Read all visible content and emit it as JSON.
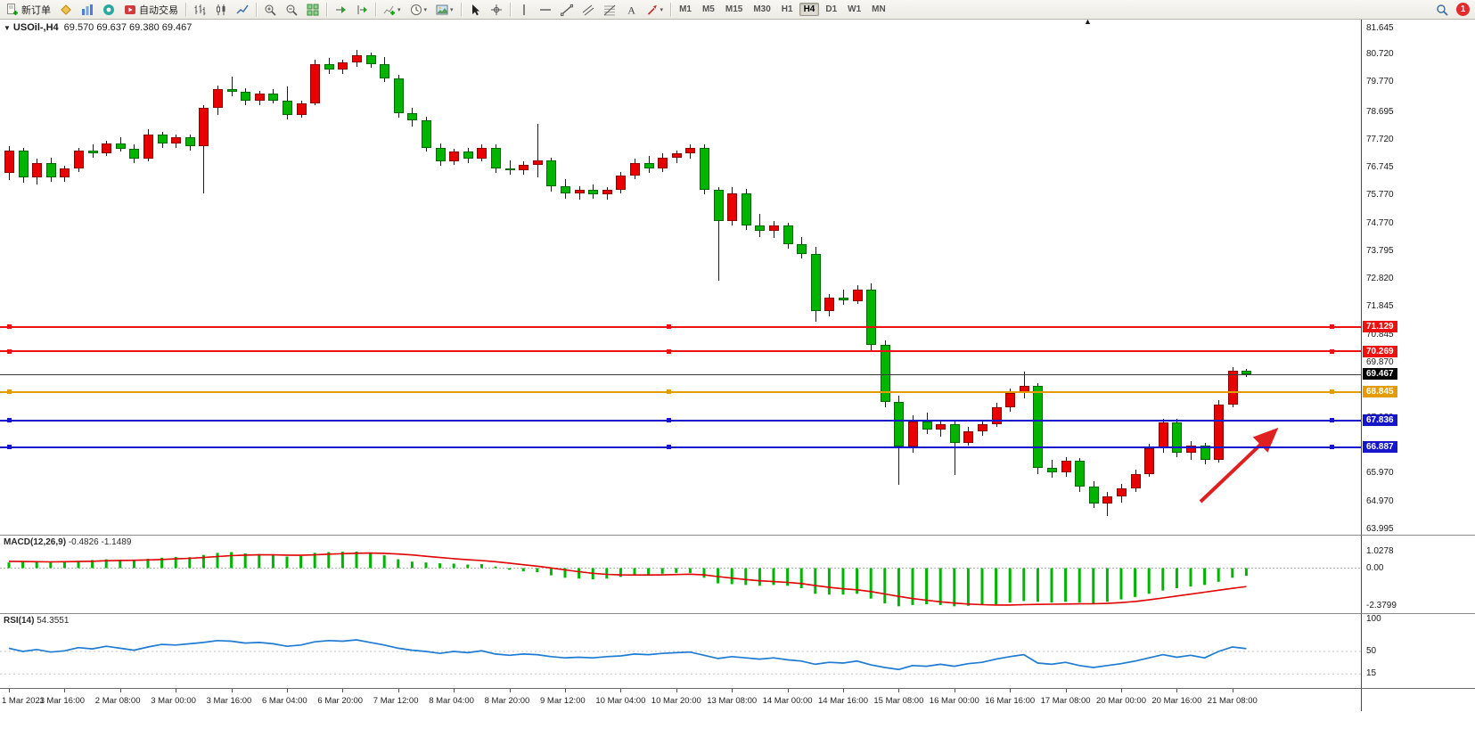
{
  "toolbar": {
    "active_timeframe": "H4",
    "notification_count": "1",
    "items": [
      {
        "type": "button",
        "name": "new-order-button",
        "icon": "new-order-icon",
        "label": "新订单"
      },
      {
        "type": "icon",
        "name": "metaeditor-button",
        "icon": "metaeditor-icon"
      },
      {
        "type": "icon",
        "name": "market-watch-button",
        "icon": "market-watch-icon"
      },
      {
        "type": "icon",
        "name": "mql-community-button",
        "icon": "mql-icon"
      },
      {
        "type": "button",
        "name": "autotrading-button",
        "icon": "autotrading-icon",
        "label": "自动交易"
      },
      {
        "type": "sep"
      },
      {
        "type": "icon",
        "name": "bar-chart-button",
        "icon": "bar-chart-icon"
      },
      {
        "type": "icon",
        "name": "candlestick-chart-button",
        "icon": "candlestick-icon"
      },
      {
        "type": "icon",
        "name": "line-chart-button",
        "icon": "line-chart-icon"
      },
      {
        "type": "sep"
      },
      {
        "type": "icon",
        "name": "zoom-in-button",
        "icon": "zoom-in-icon"
      },
      {
        "type": "icon",
        "name": "zoom-out-button",
        "icon": "zoom-out-icon"
      },
      {
        "type": "icon",
        "name": "tile-windows-button",
        "icon": "tile-windows-icon"
      },
      {
        "type": "sep"
      },
      {
        "type": "icon",
        "name": "auto-scroll-button",
        "icon": "auto-scroll-icon"
      },
      {
        "type": "icon",
        "name": "chart-shift-button",
        "icon": "chart-shift-icon"
      },
      {
        "type": "sep"
      },
      {
        "type": "icon",
        "name": "indicators-button",
        "icon": "indicators-icon",
        "caret": true
      },
      {
        "type": "icon",
        "name": "periods-button",
        "icon": "periods-icon",
        "caret": true
      },
      {
        "type": "icon",
        "name": "templates-button",
        "icon": "template-icon",
        "caret": true
      },
      {
        "type": "sep"
      },
      {
        "type": "icon",
        "name": "cursor-button",
        "icon": "cursor-icon"
      },
      {
        "type": "icon",
        "name": "crosshair-button",
        "icon": "crosshair-icon"
      },
      {
        "type": "sep"
      },
      {
        "type": "icon",
        "name": "vertical-line-button",
        "icon": "vline-icon"
      },
      {
        "type": "icon",
        "name": "horizontal-line-button",
        "icon": "hline-icon"
      },
      {
        "type": "icon",
        "name": "trendline-button",
        "icon": "trendline-icon"
      },
      {
        "type": "icon",
        "name": "channel-button",
        "icon": "channel-icon"
      },
      {
        "type": "icon",
        "name": "fibonacci-button",
        "icon": "fibo-icon"
      },
      {
        "type": "icon",
        "name": "text-button",
        "icon": "text-icon"
      },
      {
        "type": "icon",
        "name": "arrows-button",
        "icon": "arrows-icon",
        "caret": true
      },
      {
        "type": "sep"
      },
      {
        "type": "tf",
        "name": "timeframe-m1-button",
        "label": "M1"
      },
      {
        "type": "tf",
        "name": "timeframe-m5-button",
        "label": "M5"
      },
      {
        "type": "tf",
        "name": "timeframe-m15-button",
        "label": "M15"
      },
      {
        "type": "tf",
        "name": "timeframe-m30-button",
        "label": "M30"
      },
      {
        "type": "tf",
        "name": "timeframe-h1-button",
        "label": "H1"
      },
      {
        "type": "tf",
        "name": "timeframe-h4-button",
        "label": "H4"
      },
      {
        "type": "tf",
        "name": "timeframe-d1-button",
        "label": "D1"
      },
      {
        "type": "tf",
        "name": "timeframe-w1-button",
        "label": "W1"
      },
      {
        "type": "tf",
        "name": "timeframe-mn-button",
        "label": "MN"
      },
      {
        "type": "spacer"
      },
      {
        "type": "icon",
        "name": "search-button",
        "icon": "search-icon"
      },
      {
        "type": "badge",
        "name": "notification-badge",
        "label": "1"
      }
    ]
  },
  "chart": {
    "symbol_period": "USOil-,H4",
    "ohlc": "69.570 69.637 69.380 69.467",
    "up_color": "#e80000",
    "down_color": "#00b400",
    "price_axis": [
      "81.645",
      "80.720",
      "79.770",
      "78.695",
      "77.720",
      "76.745",
      "75.770",
      "74.770",
      "73.795",
      "72.820",
      "71.845",
      "70.845",
      "69.870",
      "68.895",
      "67.920",
      "66.945",
      "65.970",
      "64.970",
      "63.995"
    ],
    "hlines": [
      {
        "label": "71.129",
        "price": 71.129,
        "color": "#ee1111"
      },
      {
        "label": "70.269",
        "price": 70.269,
        "color": "#ee1111"
      },
      {
        "label": "68.845",
        "price": 68.845,
        "color": "#e39b00"
      },
      {
        "label": "67.836",
        "price": 67.836,
        "color": "#1515cc"
      },
      {
        "label": "66.887",
        "price": 66.887,
        "color": "#1515cc"
      }
    ],
    "current_price": {
      "label": "69.467",
      "price": 69.467,
      "color": "#000000"
    },
    "time_axis": [
      "1 Mar 2023",
      "1 Mar 16:00",
      "2 Mar 08:00",
      "3 Mar 00:00",
      "3 Mar 16:00",
      "6 Mar 04:00",
      "6 Mar 20:00",
      "7 Mar 12:00",
      "8 Mar 04:00",
      "8 Mar 20:00",
      "9 Mar 12:00",
      "10 Mar 04:00",
      "10 Mar 20:00",
      "13 Mar 08:00",
      "14 Mar 00:00",
      "14 Mar 16:00",
      "15 Mar 08:00",
      "16 Mar 00:00",
      "16 Mar 16:00",
      "17 Mar 08:00",
      "20 Mar 00:00",
      "20 Mar 16:00",
      "21 Mar 08:00"
    ]
  },
  "chart_data": {
    "type": "candlestick",
    "symbol": "USOil-",
    "timeframe": "H4",
    "ylim": [
      63.995,
      81.645
    ],
    "candles": [
      [
        76.55,
        77.5,
        76.3,
        77.35
      ],
      [
        77.35,
        77.45,
        76.2,
        76.4
      ],
      [
        76.4,
        77.05,
        76.15,
        76.9
      ],
      [
        76.9,
        77.1,
        76.25,
        76.4
      ],
      [
        76.4,
        76.8,
        76.25,
        76.7
      ],
      [
        76.7,
        77.45,
        76.6,
        77.35
      ],
      [
        77.35,
        77.55,
        77.1,
        77.25
      ],
      [
        77.25,
        77.7,
        77.15,
        77.6
      ],
      [
        77.6,
        77.8,
        77.3,
        77.4
      ],
      [
        77.4,
        77.55,
        76.9,
        77.05
      ],
      [
        77.05,
        78.1,
        76.95,
        77.9
      ],
      [
        77.9,
        78.0,
        77.45,
        77.6
      ],
      [
        77.6,
        77.9,
        77.45,
        77.8
      ],
      [
        77.8,
        77.9,
        77.35,
        77.5
      ],
      [
        77.5,
        78.95,
        75.85,
        78.85
      ],
      [
        78.85,
        79.65,
        78.6,
        79.5
      ],
      [
        79.5,
        79.95,
        79.25,
        79.4
      ],
      [
        79.4,
        79.55,
        78.95,
        79.1
      ],
      [
        79.1,
        79.45,
        78.95,
        79.35
      ],
      [
        79.35,
        79.5,
        79.0,
        79.1
      ],
      [
        79.1,
        79.6,
        78.45,
        78.6
      ],
      [
        78.6,
        79.1,
        78.5,
        79.0
      ],
      [
        79.0,
        80.55,
        78.95,
        80.4
      ],
      [
        80.4,
        80.6,
        80.05,
        80.2
      ],
      [
        80.2,
        80.55,
        80.05,
        80.45
      ],
      [
        80.45,
        80.9,
        80.3,
        80.7
      ],
      [
        80.7,
        80.8,
        80.25,
        80.4
      ],
      [
        80.4,
        80.65,
        79.75,
        79.9
      ],
      [
        79.9,
        80.0,
        78.5,
        78.65
      ],
      [
        78.65,
        78.85,
        78.2,
        78.4
      ],
      [
        78.4,
        78.55,
        77.3,
        77.45
      ],
      [
        77.45,
        77.6,
        76.8,
        76.95
      ],
      [
        76.95,
        77.4,
        76.85,
        77.3
      ],
      [
        77.3,
        77.45,
        76.9,
        77.05
      ],
      [
        77.05,
        77.55,
        76.95,
        77.45
      ],
      [
        77.45,
        77.55,
        76.55,
        76.7
      ],
      [
        76.7,
        77.0,
        76.5,
        76.65
      ],
      [
        76.65,
        76.95,
        76.5,
        76.85
      ],
      [
        76.85,
        78.3,
        76.4,
        77.0
      ],
      [
        77.0,
        77.1,
        75.9,
        76.1
      ],
      [
        76.1,
        76.35,
        75.65,
        75.85
      ],
      [
        75.85,
        76.1,
        75.6,
        75.95
      ],
      [
        75.95,
        76.15,
        75.65,
        75.8
      ],
      [
        75.8,
        76.05,
        75.6,
        75.95
      ],
      [
        75.95,
        76.6,
        75.85,
        76.45
      ],
      [
        76.45,
        77.05,
        76.35,
        76.9
      ],
      [
        76.9,
        77.15,
        76.55,
        76.7
      ],
      [
        76.7,
        77.25,
        76.6,
        77.1
      ],
      [
        77.1,
        77.35,
        76.9,
        77.25
      ],
      [
        77.25,
        77.55,
        77.05,
        77.45
      ],
      [
        77.45,
        77.55,
        75.8,
        75.95
      ],
      [
        75.95,
        76.05,
        72.75,
        74.85
      ],
      [
        74.85,
        76.05,
        74.7,
        75.85
      ],
      [
        75.85,
        76.0,
        74.55,
        74.7
      ],
      [
        74.7,
        75.1,
        74.3,
        74.5
      ],
      [
        74.5,
        74.85,
        74.25,
        74.7
      ],
      [
        74.7,
        74.8,
        73.9,
        74.05
      ],
      [
        74.05,
        74.3,
        73.55,
        73.7
      ],
      [
        73.7,
        73.95,
        71.3,
        71.7
      ],
      [
        71.7,
        72.3,
        71.5,
        72.15
      ],
      [
        72.15,
        72.45,
        71.9,
        72.05
      ],
      [
        72.05,
        72.6,
        71.95,
        72.45
      ],
      [
        72.45,
        72.65,
        70.3,
        70.5
      ],
      [
        70.5,
        70.65,
        68.3,
        68.5
      ],
      [
        68.5,
        68.7,
        65.55,
        66.9
      ],
      [
        66.9,
        68.0,
        66.7,
        67.8
      ],
      [
        67.8,
        68.1,
        67.35,
        67.5
      ],
      [
        67.5,
        67.85,
        67.25,
        67.7
      ],
      [
        67.7,
        67.8,
        65.9,
        67.05
      ],
      [
        67.05,
        67.6,
        66.95,
        67.45
      ],
      [
        67.45,
        67.8,
        67.3,
        67.7
      ],
      [
        67.7,
        68.45,
        67.6,
        68.3
      ],
      [
        68.3,
        68.95,
        68.15,
        68.8
      ],
      [
        68.8,
        69.55,
        68.6,
        69.05
      ],
      [
        69.05,
        69.15,
        65.95,
        66.15
      ],
      [
        66.15,
        66.45,
        65.8,
        66.0
      ],
      [
        66.0,
        66.55,
        65.85,
        66.4
      ],
      [
        66.4,
        66.5,
        65.3,
        65.5
      ],
      [
        65.5,
        65.7,
        64.75,
        64.9
      ],
      [
        64.9,
        65.3,
        64.45,
        65.15
      ],
      [
        65.15,
        65.6,
        64.95,
        65.45
      ],
      [
        65.45,
        66.1,
        65.3,
        65.95
      ],
      [
        65.95,
        67.0,
        65.85,
        66.85
      ],
      [
        66.85,
        67.9,
        66.7,
        67.75
      ],
      [
        67.75,
        67.9,
        66.55,
        66.7
      ],
      [
        66.7,
        67.1,
        66.45,
        66.95
      ],
      [
        66.95,
        67.05,
        66.3,
        66.45
      ],
      [
        66.45,
        68.55,
        66.35,
        68.4
      ],
      [
        68.4,
        69.7,
        68.3,
        69.57
      ],
      [
        69.57,
        69.637,
        69.38,
        69.467
      ]
    ]
  },
  "macd": {
    "name": "MACD(12,26,9)",
    "value_main": "-0.4826",
    "value_signal": "-1.1489",
    "axis_labels": [
      "1.0278",
      "0.00",
      "-2.3799"
    ],
    "histogram": [
      0.35,
      0.4,
      0.38,
      0.35,
      0.4,
      0.45,
      0.5,
      0.55,
      0.52,
      0.48,
      0.58,
      0.65,
      0.7,
      0.68,
      0.82,
      0.95,
      1.0,
      0.92,
      0.88,
      0.82,
      0.72,
      0.75,
      0.95,
      1.0,
      1.02,
      1.03,
      0.95,
      0.8,
      0.55,
      0.4,
      0.35,
      0.3,
      0.28,
      0.22,
      0.25,
      0.1,
      -0.1,
      -0.2,
      -0.25,
      -0.45,
      -0.6,
      -0.65,
      -0.7,
      -0.65,
      -0.55,
      -0.45,
      -0.4,
      -0.35,
      -0.3,
      -0.3,
      -0.6,
      -0.95,
      -1.0,
      -1.05,
      -1.1,
      -1.05,
      -1.1,
      -1.25,
      -1.6,
      -1.65,
      -1.65,
      -1.6,
      -1.9,
      -2.2,
      -2.38,
      -2.3,
      -2.25,
      -2.3,
      -2.38,
      -2.35,
      -2.3,
      -2.25,
      -2.15,
      -2.05,
      -2.1,
      -2.15,
      -2.1,
      -2.15,
      -2.2,
      -2.1,
      -1.95,
      -1.8,
      -1.6,
      -1.4,
      -1.25,
      -1.15,
      -1.05,
      -0.85,
      -0.6,
      -0.48
    ],
    "signal": [
      0.42,
      0.41,
      0.4,
      0.39,
      0.4,
      0.41,
      0.43,
      0.46,
      0.48,
      0.49,
      0.51,
      0.54,
      0.58,
      0.61,
      0.66,
      0.72,
      0.78,
      0.81,
      0.83,
      0.83,
      0.81,
      0.8,
      0.83,
      0.87,
      0.9,
      0.93,
      0.94,
      0.92,
      0.88,
      0.82,
      0.74,
      0.66,
      0.59,
      0.52,
      0.47,
      0.4,
      0.31,
      0.21,
      0.12,
      0.01,
      -0.11,
      -0.22,
      -0.32,
      -0.39,
      -0.42,
      -0.43,
      -0.43,
      -0.42,
      -0.4,
      -0.38,
      -0.42,
      -0.53,
      -0.62,
      -0.71,
      -0.79,
      -0.84,
      -0.89,
      -0.96,
      -1.09,
      -1.2,
      -1.29,
      -1.35,
      -1.46,
      -1.61,
      -1.76,
      -1.9,
      -2.0,
      -2.1,
      -2.18,
      -2.24,
      -2.28,
      -2.3,
      -2.3,
      -2.28,
      -2.26,
      -2.25,
      -2.24,
      -2.23,
      -2.22,
      -2.2,
      -2.15,
      -2.08,
      -1.98,
      -1.86,
      -1.74,
      -1.62,
      -1.5,
      -1.38,
      -1.26,
      -1.15
    ]
  },
  "rsi": {
    "name": "RSI(14)",
    "value": "54.3551",
    "axis_labels": [
      "100",
      "50",
      "15"
    ],
    "values": [
      55,
      50,
      53,
      49,
      51,
      56,
      54,
      58,
      55,
      52,
      57,
      61,
      60,
      62,
      64,
      67,
      66,
      63,
      64,
      62,
      58,
      60,
      65,
      67,
      66,
      68,
      64,
      60,
      55,
      52,
      50,
      47,
      50,
      48,
      51,
      46,
      44,
      46,
      45,
      42,
      40,
      41,
      40,
      42,
      43,
      46,
      45,
      47,
      48,
      49,
      44,
      39,
      42,
      40,
      38,
      40,
      37,
      35,
      30,
      33,
      32,
      35,
      29,
      25,
      22,
      28,
      27,
      30,
      27,
      31,
      33,
      38,
      42,
      45,
      32,
      30,
      33,
      28,
      25,
      28,
      31,
      35,
      40,
      45,
      41,
      44,
      40,
      50,
      57,
      54.4
    ]
  }
}
